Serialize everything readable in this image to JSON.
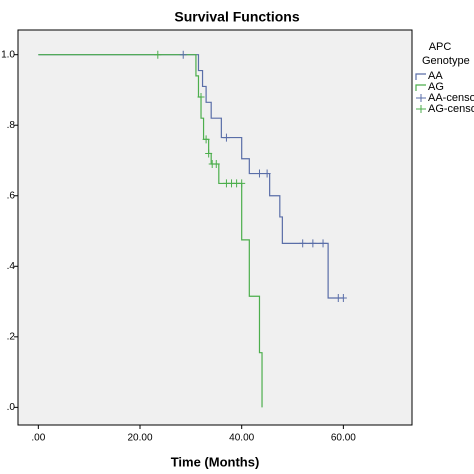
{
  "chart_data": {
    "type": "survival",
    "title": "Survival Functions",
    "xlabel": "Time (Months)",
    "legend_title": [
      "APC",
      "Genotype"
    ],
    "xlim": [
      -4,
      73.5
    ],
    "ylim": [
      -0.05,
      1.07
    ],
    "xticks": [
      {
        "value": 0,
        "label": ".00"
      },
      {
        "value": 20,
        "label": "20.00"
      },
      {
        "value": 40,
        "label": "40.00"
      },
      {
        "value": 60,
        "label": "60.00"
      }
    ],
    "yticks": [
      {
        "value": 0,
        "label": ".0"
      },
      {
        "value": 0.2,
        "label": ".2"
      },
      {
        "value": 0.4,
        "label": ".4"
      },
      {
        "value": 0.6,
        "label": ".6"
      },
      {
        "value": 0.8,
        "label": ".8"
      },
      {
        "value": 1.0,
        "label": "1.0"
      }
    ],
    "series": [
      {
        "name": "AA",
        "color": "#5a6ea8",
        "marker": "step",
        "x": [
          0,
          31.5,
          32.3,
          33,
          34,
          36,
          40,
          41.5,
          45.5,
          47.5,
          48,
          57,
          60
        ],
        "values": [
          1.0,
          0.955,
          0.91,
          0.865,
          0.82,
          0.765,
          0.705,
          0.663,
          0.6,
          0.54,
          0.465,
          0.31,
          0.31
        ]
      },
      {
        "name": "AG",
        "color": "#4cae4c",
        "marker": "step",
        "x": [
          0,
          31,
          31.5,
          32,
          32.5,
          33.5,
          34,
          35.5,
          40,
          41.5,
          43.5,
          44
        ],
        "values": [
          1.0,
          0.94,
          0.88,
          0.82,
          0.76,
          0.72,
          0.69,
          0.635,
          0.475,
          0.315,
          0.155,
          0.0
        ]
      },
      {
        "name": "AA-censored",
        "color": "#5a6ea8",
        "marker": "plus",
        "x": [
          28.5,
          37,
          43.5,
          45,
          52,
          54,
          56,
          59,
          60
        ],
        "values": [
          1.0,
          0.765,
          0.663,
          0.663,
          0.465,
          0.465,
          0.465,
          0.31,
          0.31
        ]
      },
      {
        "name": "AG-censored",
        "color": "#4cae4c",
        "marker": "plus",
        "x": [
          23.5,
          32,
          33,
          33.5,
          34.2,
          35,
          37,
          38,
          39,
          40
        ],
        "values": [
          1.0,
          0.88,
          0.76,
          0.72,
          0.69,
          0.69,
          0.635,
          0.635,
          0.635,
          0.635
        ]
      }
    ]
  }
}
